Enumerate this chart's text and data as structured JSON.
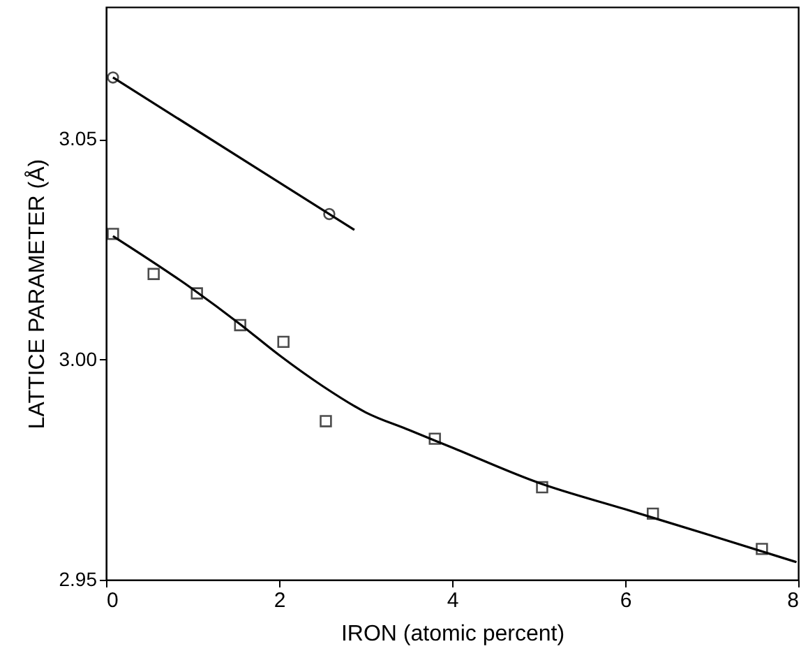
{
  "chart_data": {
    "type": "scatter",
    "xlabel": "IRON (atomic percent)",
    "ylabel": "LATTICE PARAMETER (Å)",
    "xlim": [
      0,
      8
    ],
    "xticks": [
      0,
      2,
      4,
      6,
      8
    ],
    "ylim": [
      2.95,
      3.08
    ],
    "yticks": [
      {
        "value": 2.95,
        "label": "2.95"
      },
      {
        "value": 3.0,
        "label": "3.00"
      },
      {
        "value": 3.05,
        "label": "3.05"
      }
    ],
    "grid": false,
    "series": [
      {
        "marker": "circle",
        "color": "#000000",
        "x": [
          0.08,
          2.58
        ],
        "values": [
          3.064,
          3.033
        ]
      },
      {
        "type": "line",
        "color": "#000000",
        "x": [
          0.08,
          2.87
        ],
        "values": [
          3.064,
          3.0294
        ]
      },
      {
        "marker": "square",
        "color": "#000000",
        "x": [
          0.08,
          0.55,
          1.05,
          1.55,
          2.05,
          2.54,
          3.8,
          5.04,
          6.32,
          7.58
        ],
        "values": [
          3.0285,
          3.0194,
          3.015,
          3.0078,
          3.004,
          2.986,
          2.982,
          2.971,
          2.965,
          2.957
        ]
      },
      {
        "type": "line",
        "color": "#000000",
        "x": [
          0.08,
          1.0,
          1.55,
          2.0,
          2.5,
          3.0,
          3.5,
          4.0,
          5.0,
          6.0,
          7.0,
          7.98
        ],
        "values": [
          3.028,
          3.016,
          3.008,
          3.001,
          2.994,
          2.988,
          2.984,
          2.98,
          2.972,
          2.966,
          2.96,
          2.954
        ]
      }
    ]
  }
}
